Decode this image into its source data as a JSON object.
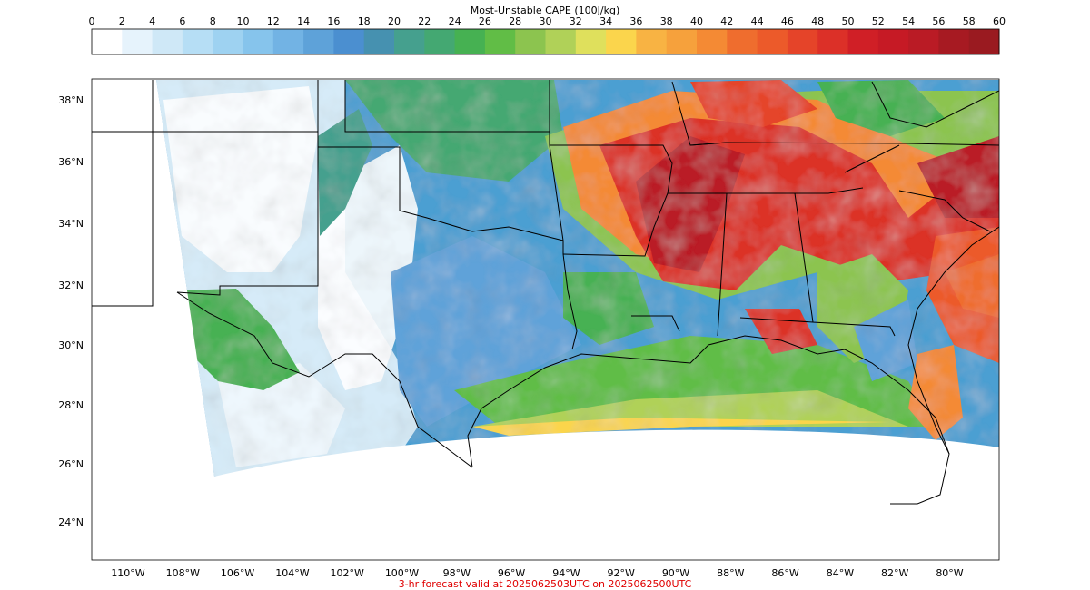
{
  "colorbar": {
    "title": "Most-Unstable CAPE (100J/kg)",
    "ticks": [
      "0",
      "2",
      "4",
      "6",
      "8",
      "10",
      "12",
      "14",
      "16",
      "18",
      "20",
      "22",
      "24",
      "26",
      "28",
      "30",
      "32",
      "34",
      "36",
      "38",
      "40",
      "42",
      "44",
      "46",
      "48",
      "50",
      "52",
      "54",
      "56",
      "58",
      "60"
    ],
    "colors": [
      "#ffffff",
      "#e6f3fc",
      "#cfe8f7",
      "#b6def5",
      "#9ed2f1",
      "#86c4ec",
      "#72b3e4",
      "#5ea2d9",
      "#4b8fd0",
      "#4691b0",
      "#45a08e",
      "#44a872",
      "#46b152",
      "#61bd46",
      "#8cc44f",
      "#b0d158",
      "#dfe05c",
      "#fbd54c",
      "#f8b343",
      "#f6a13c",
      "#f48a34",
      "#ef6d2e",
      "#ec5a2a",
      "#e54429",
      "#dc3028",
      "#d01f26",
      "#c61a25",
      "#ba1b25",
      "#a71a22",
      "#9a1a20"
    ]
  },
  "map": {
    "lat_labels": [
      "38°N",
      "36°N",
      "34°N",
      "32°N",
      "30°N",
      "28°N",
      "26°N",
      "24°N"
    ],
    "lon_labels": [
      "110°W",
      "108°W",
      "106°W",
      "104°W",
      "102°W",
      "100°W",
      "98°W",
      "96°W",
      "94°W",
      "92°W",
      "90°W",
      "88°W",
      "86°W",
      "84°W",
      "82°W",
      "80°W"
    ]
  },
  "footer": "3-hr forecast valid at 2025062503UTC on 2025062500UTC"
}
